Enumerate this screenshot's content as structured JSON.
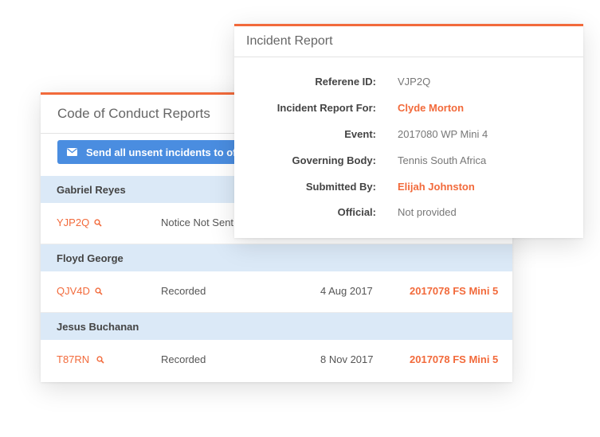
{
  "coc": {
    "title": "Code of Conduct Reports",
    "send_button_label": "Send all unsent incidents to official",
    "groups": [
      {
        "name": "Gabriel Reyes",
        "id": "YJP2Q",
        "status": "Notice Not Sent",
        "date": "",
        "event": ""
      },
      {
        "name": "Floyd George",
        "id": "QJV4D",
        "status": "Recorded",
        "date": "4 Aug 2017",
        "event": "2017078 FS Mini 5"
      },
      {
        "name": "Jesus Buchanan",
        "id": "T87RN",
        "status": "Recorded",
        "date": "8 Nov 2017",
        "event": "2017078 FS Mini 5"
      }
    ]
  },
  "incident": {
    "title": "Incident Report",
    "fields": [
      {
        "label": "Referene ID:",
        "value": "VJP2Q"
      },
      {
        "label": "Incident Report For:",
        "value": "Clyde Morton"
      },
      {
        "label": "Event:",
        "value": "2017080 WP Mini 4"
      },
      {
        "label": "Governing Body:",
        "value": "Tennis South Africa"
      },
      {
        "label": "Submitted By:",
        "value": "Elijah Johnston"
      },
      {
        "label": "Official:",
        "value": "Not provided"
      }
    ]
  },
  "colors": {
    "accent": "#f26a3b",
    "button": "#4a8de0",
    "group_bg": "#dbe9f7"
  },
  "icons": {
    "send": "envelope-icon",
    "search": "search-icon"
  }
}
